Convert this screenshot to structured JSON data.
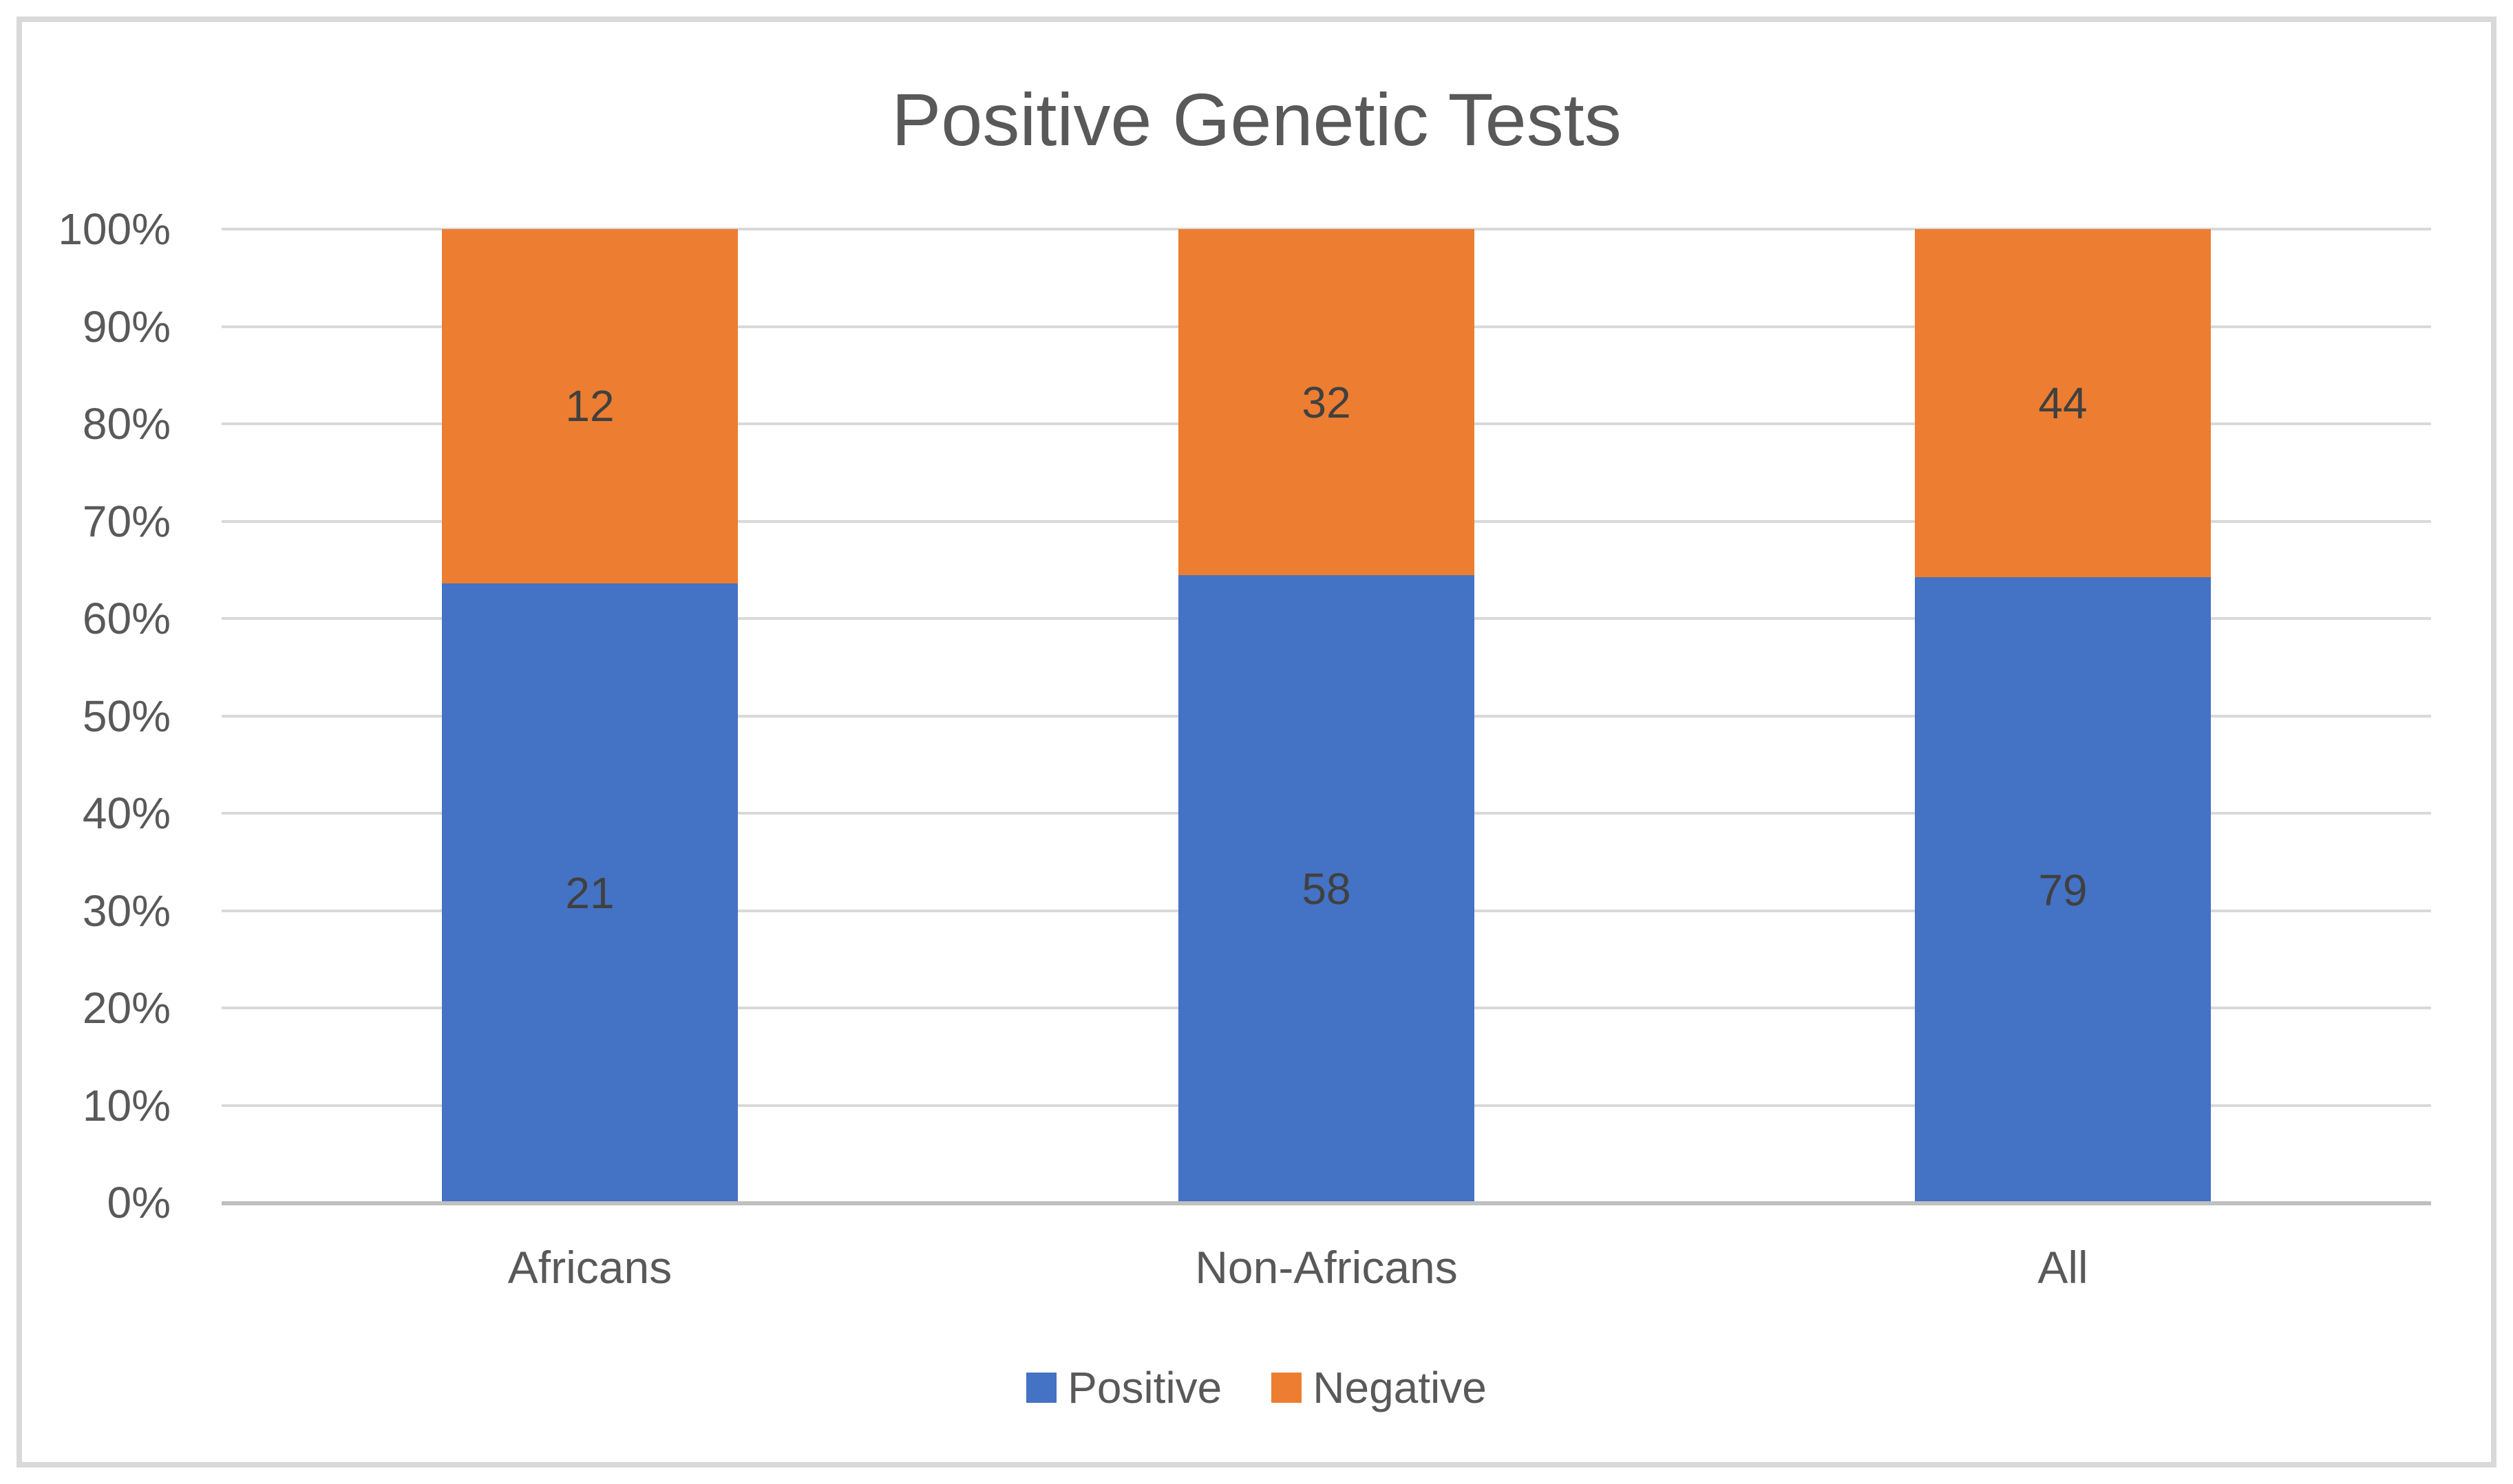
{
  "chart_data": {
    "type": "bar",
    "stacked": true,
    "percent_stacked": true,
    "title": "Positive Genetic Tests",
    "categories": [
      "Africans",
      "Non-Africans",
      "All"
    ],
    "series": [
      {
        "name": "Positive",
        "color": "#4472C4",
        "values": [
          21,
          58,
          79
        ]
      },
      {
        "name": "Negative",
        "color": "#ED7D31",
        "values": [
          12,
          32,
          44
        ]
      }
    ],
    "xlabel": "",
    "ylabel": "",
    "ylim": [
      0,
      100
    ],
    "y_tick_step": 10,
    "grid": true,
    "legend_position": "bottom"
  },
  "y_axis": {
    "ticks": [
      "0%",
      "10%",
      "20%",
      "30%",
      "40%",
      "50%",
      "60%",
      "70%",
      "80%",
      "90%",
      "100%"
    ]
  },
  "colors": {
    "positive_series": "#4472C4",
    "negative_series": "#ED7D31",
    "title_text": "#595959",
    "axis_text": "#595959",
    "data_label_text": "#404040",
    "gridline": "#D9D9D9",
    "axis_line": "#BFBFBF",
    "frame_border": "#D9D9D9",
    "background": "#FFFFFF"
  }
}
